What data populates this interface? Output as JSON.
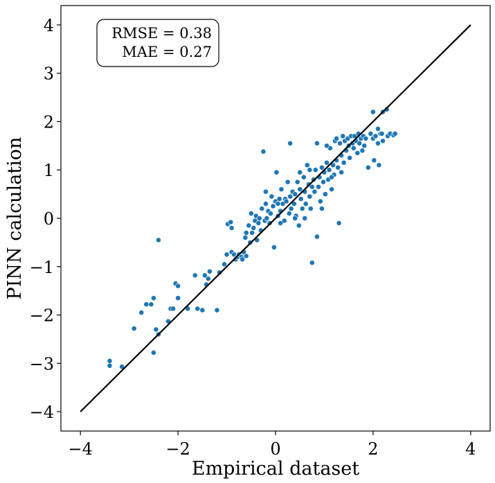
{
  "chart_data": {
    "type": "scatter",
    "title": "",
    "xlabel": "Empirical dataset",
    "ylabel": "PINN calculation",
    "xlim": [
      -4.4,
      4.4
    ],
    "ylim": [
      -4.4,
      4.4
    ],
    "xticks": [
      -4,
      -2,
      0,
      2,
      4
    ],
    "yticks": [
      -4,
      -3,
      -2,
      -1,
      0,
      1,
      2,
      3,
      4
    ],
    "xtick_labels": [
      "−4",
      "−2",
      "0",
      "2",
      "4"
    ],
    "ytick_labels": [
      "−4",
      "−3",
      "−2",
      "−1",
      "0",
      "1",
      "2",
      "3",
      "4"
    ],
    "grid": false,
    "annotation": {
      "line1": "RMSE = 0.38",
      "line2": "MAE = 0.27",
      "placement": "top-left"
    },
    "reference_line": {
      "x": [
        -4,
        4
      ],
      "y": [
        -4,
        4
      ],
      "color": "#000000"
    },
    "point_color": "#1f77b4",
    "points": [
      [
        -3.4,
        -2.95
      ],
      [
        -3.4,
        -3.05
      ],
      [
        -3.15,
        -3.07
      ],
      [
        -2.9,
        -2.28
      ],
      [
        -2.75,
        -1.95
      ],
      [
        -2.65,
        -1.78
      ],
      [
        -2.55,
        -1.78
      ],
      [
        -2.5,
        -1.65
      ],
      [
        -2.5,
        -2.78
      ],
      [
        -2.45,
        -2.3
      ],
      [
        -2.4,
        -2.4
      ],
      [
        -2.4,
        -0.45
      ],
      [
        -2.2,
        -2.13
      ],
      [
        -2.15,
        -1.87
      ],
      [
        -2.1,
        -1.87
      ],
      [
        -2.05,
        -1.35
      ],
      [
        -2.0,
        -1.4
      ],
      [
        -2.0,
        -1.65
      ],
      [
        -1.8,
        -1.87
      ],
      [
        -1.65,
        -1.18
      ],
      [
        -1.6,
        -1.87
      ],
      [
        -1.5,
        -1.9
      ],
      [
        -1.45,
        -1.18
      ],
      [
        -1.42,
        -1.37
      ],
      [
        -1.38,
        -1.25
      ],
      [
        -1.35,
        -1.1
      ],
      [
        -1.2,
        -1.9
      ],
      [
        -1.15,
        -1.12
      ],
      [
        -1.05,
        -0.95
      ],
      [
        -1.0,
        -0.75
      ],
      [
        -0.98,
        -0.12
      ],
      [
        -0.92,
        -0.08
      ],
      [
        -0.9,
        -0.7
      ],
      [
        -0.85,
        -0.75
      ],
      [
        -0.82,
        -0.85
      ],
      [
        -0.78,
        -0.8
      ],
      [
        -0.75,
        -0.75
      ],
      [
        -0.7,
        -0.8
      ],
      [
        -0.68,
        -0.85
      ],
      [
        -0.65,
        -0.7
      ],
      [
        -0.62,
        -0.4
      ],
      [
        -0.6,
        -0.78
      ],
      [
        -0.55,
        -0.15
      ],
      [
        -0.52,
        -0.5
      ],
      [
        -0.5,
        0.1
      ],
      [
        -0.48,
        -0.3
      ],
      [
        -0.45,
        -0.2
      ],
      [
        -0.42,
        -0.05
      ],
      [
        -0.4,
        0.05
      ],
      [
        -0.38,
        -0.45
      ],
      [
        -0.35,
        -0.1
      ],
      [
        -0.33,
        0.0
      ],
      [
        -0.3,
        -0.25
      ],
      [
        -0.28,
        0.2
      ],
      [
        -0.25,
        1.38
      ],
      [
        -0.22,
        -0.05
      ],
      [
        -0.2,
        0.3
      ],
      [
        -0.18,
        0.0
      ],
      [
        -0.15,
        0.15
      ],
      [
        -0.12,
        -0.1
      ],
      [
        -0.1,
        0.1
      ],
      [
        -0.08,
        0.45
      ],
      [
        -0.05,
        0.25
      ],
      [
        -0.03,
        -0.6
      ],
      [
        0.0,
        0.35
      ],
      [
        0.02,
        0.95
      ],
      [
        0.05,
        0.3
      ],
      [
        0.05,
        0.05
      ],
      [
        0.08,
        0.4
      ],
      [
        0.1,
        0.15
      ],
      [
        0.12,
        0.6
      ],
      [
        0.15,
        0.3
      ],
      [
        0.18,
        -0.05
      ],
      [
        0.2,
        0.4
      ],
      [
        0.22,
        0.35
      ],
      [
        0.25,
        0.75
      ],
      [
        0.28,
        0.1
      ],
      [
        0.3,
        0.45
      ],
      [
        0.32,
        0.2
      ],
      [
        0.35,
        0.55
      ],
      [
        0.38,
        0.3
      ],
      [
        0.4,
        0.5
      ],
      [
        0.42,
        0.05
      ],
      [
        0.45,
        0.75
      ],
      [
        0.48,
        -0.15
      ],
      [
        0.5,
        0.6
      ],
      [
        0.52,
        0.4
      ],
      [
        0.55,
        0.2
      ],
      [
        0.58,
        0.85
      ],
      [
        0.6,
        0.55
      ],
      [
        0.62,
        0.3
      ],
      [
        0.65,
        1.1
      ],
      [
        0.68,
        0.7
      ],
      [
        0.7,
        0.45
      ],
      [
        0.72,
        0.2
      ],
      [
        0.75,
        -0.92
      ],
      [
        0.78,
        0.8
      ],
      [
        0.8,
        0.55
      ],
      [
        0.82,
        1.0
      ],
      [
        0.85,
        -0.38
      ],
      [
        0.88,
        0.65
      ],
      [
        0.9,
        0.85
      ],
      [
        0.92,
        0.35
      ],
      [
        0.95,
        1.05
      ],
      [
        0.98,
        0.75
      ],
      [
        1.0,
        0.95
      ],
      [
        1.02,
        0.5
      ],
      [
        1.05,
        1.15
      ],
      [
        1.08,
        0.8
      ],
      [
        1.1,
        1.0
      ],
      [
        1.12,
        1.45
      ],
      [
        1.15,
        0.6
      ],
      [
        1.18,
        1.1
      ],
      [
        1.2,
        0.9
      ],
      [
        1.22,
        1.6
      ],
      [
        1.25,
        1.2
      ],
      [
        1.28,
        1.05
      ],
      [
        1.3,
        -0.1
      ],
      [
        1.32,
        1.55
      ],
      [
        1.35,
        1.3
      ],
      [
        1.38,
        1.7
      ],
      [
        1.4,
        1.15
      ],
      [
        1.42,
        1.6
      ],
      [
        1.45,
        1.4
      ],
      [
        1.48,
        1.65
      ],
      [
        1.5,
        1.5
      ],
      [
        1.52,
        1.25
      ],
      [
        1.55,
        1.7
      ],
      [
        1.58,
        1.55
      ],
      [
        1.6,
        1.45
      ],
      [
        1.62,
        1.7
      ],
      [
        1.65,
        1.6
      ],
      [
        1.68,
        1.35
      ],
      [
        1.7,
        1.75
      ],
      [
        1.72,
        1.55
      ],
      [
        1.75,
        1.65
      ],
      [
        1.78,
        1.4
      ],
      [
        1.8,
        1.7
      ],
      [
        1.82,
        1.5
      ],
      [
        1.85,
        1.65
      ],
      [
        1.9,
        1.05
      ],
      [
        1.95,
        1.75
      ],
      [
        2.0,
        1.65
      ],
      [
        2.02,
        1.2
      ],
      [
        2.05,
        1.7
      ],
      [
        2.1,
        1.55
      ],
      [
        2.12,
        1.1
      ],
      [
        2.15,
        1.75
      ],
      [
        2.18,
        1.75
      ],
      [
        2.2,
        1.6
      ],
      [
        2.2,
        2.2
      ],
      [
        2.28,
        2.25
      ],
      [
        2.3,
        1.7
      ],
      [
        2.35,
        1.75
      ],
      [
        2.42,
        1.72
      ],
      [
        2.45,
        1.75
      ],
      [
        2.0,
        2.2
      ],
      [
        2.1,
        1.85
      ],
      [
        -0.2,
        0.55
      ],
      [
        0.1,
        -0.1
      ],
      [
        0.4,
        0.0
      ],
      [
        0.6,
        0.0
      ],
      [
        0.75,
        0.65
      ],
      [
        0.95,
        0.2
      ],
      [
        1.15,
        0.85
      ],
      [
        1.35,
        0.95
      ],
      [
        -0.6,
        -0.3
      ],
      [
        -0.9,
        -0.2
      ],
      [
        0.3,
        1.55
      ],
      [
        0.85,
        1.55
      ],
      [
        0.5,
        0.95
      ],
      [
        0.7,
        1.0
      ],
      [
        1.05,
        1.5
      ],
      [
        1.25,
        1.65
      ]
    ]
  }
}
